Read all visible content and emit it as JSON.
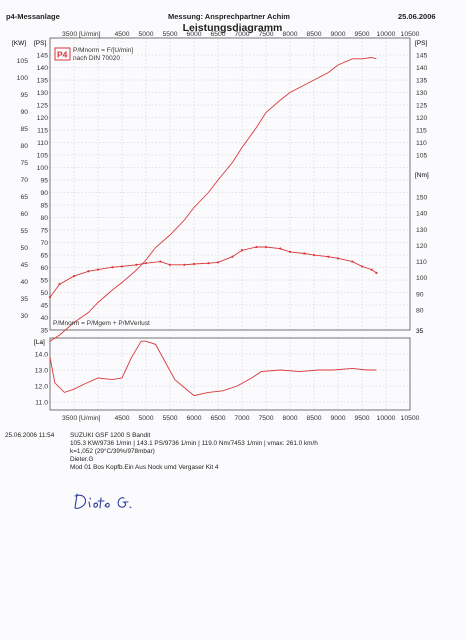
{
  "header": {
    "system": "p4-Messanlage",
    "measurement": "Messung: Ansprechpartner Achim",
    "date": "25.06.2006"
  },
  "chart_data": {
    "type": "line",
    "title": "Leistungsdiagramm",
    "legend": {
      "logo": "P4",
      "line1": "P/Mnorm = F/[U/min]",
      "line2": "nach DIN 70020"
    },
    "loss_label": "P/Mnorm = P/Mgem + P/MVerlust",
    "rpm_ticks_top": [
      "3500 [U/min]",
      "4500",
      "5000",
      "5500",
      "6000",
      "6500",
      "7000",
      "7500",
      "8000",
      "8500",
      "9000",
      "9500",
      "10000",
      "10500"
    ],
    "rpm_ticks_bottom": [
      "3500 [U/min]",
      "4500",
      "5000",
      "5500",
      "6000",
      "6500",
      "7000",
      "7500",
      "8000",
      "8500",
      "9000",
      "9500",
      "10000",
      "10500"
    ],
    "units": {
      "kw": "[KW]",
      "ps": "[PS]",
      "ps_right": "[PS]",
      "nm": "[Nm]",
      "la": "[La]"
    },
    "kw_ticks": [
      "105",
      "100",
      "95",
      "90",
      "85",
      "80",
      "75",
      "70",
      "65",
      "60",
      "55",
      "50",
      "45",
      "40",
      "35",
      "30"
    ],
    "ps_ticks": [
      "145",
      "140",
      "135",
      "130",
      "125",
      "120",
      "115",
      "110",
      "105",
      "100",
      "95",
      "90",
      "85",
      "80",
      "75",
      "70",
      "65",
      "60",
      "55",
      "50",
      "45",
      "40",
      "35"
    ],
    "ps_right_ticks": [
      "145",
      "140",
      "135",
      "130",
      "125",
      "120",
      "115",
      "110",
      "105"
    ],
    "nm_ticks": [
      "150",
      "140",
      "130",
      "120",
      "110",
      "100",
      "90",
      "80"
    ],
    "nm_right_extra": "35",
    "lambda_ticks": [
      "14.0",
      "13.0",
      "12.0",
      "11.0"
    ],
    "bottom_left_label": "40",
    "xlim": [
      3000,
      10500
    ],
    "series": [
      {
        "unit": "PS",
        "color": "#d8383c",
        "x": [
          3000,
          3200,
          3500,
          3800,
          4000,
          4300,
          4500,
          4800,
          5000,
          5200,
          5500,
          5800,
          6000,
          6300,
          6500,
          6800,
          7000,
          7300,
          7500,
          7800,
          8000,
          8300,
          8500,
          8800,
          9000,
          9300,
          9500,
          9700,
          9800
        ],
        "y": [
          30.5,
          33,
          38,
          42,
          46,
          51,
          54,
          59,
          63,
          68,
          73,
          79,
          84,
          90,
          95,
          102,
          108,
          116,
          122,
          127,
          130,
          133,
          135,
          138,
          141,
          143.5,
          143.5,
          144,
          143.5
        ]
      },
      {
        "unit": "Nm",
        "color": "#d8383c",
        "x": [
          3000,
          3200,
          3500,
          3800,
          4000,
          4300,
          4500,
          4800,
          5000,
          5300,
          5500,
          5800,
          6000,
          6300,
          6500,
          6800,
          7000,
          7300,
          7500,
          7800,
          8000,
          8300,
          8500,
          8800,
          9000,
          9300,
          9500,
          9700,
          9800
        ],
        "y": [
          88,
          96,
          101,
          104,
          105,
          106.5,
          107,
          108,
          109,
          110,
          108,
          108,
          108.5,
          109,
          109.5,
          113,
          117,
          119,
          119,
          118,
          116,
          115,
          114,
          113,
          112,
          110,
          107,
          105,
          103
        ]
      },
      {
        "unit": "Lambda",
        "color": "#d8383c",
        "x": [
          3000,
          3100,
          3300,
          3500,
          3700,
          4000,
          4300,
          4500,
          4700,
          4900,
          5000,
          5200,
          5400,
          5600,
          5800,
          6000,
          6300,
          6600,
          6900,
          7200,
          7400,
          7800,
          8200,
          8600,
          8900,
          9300,
          9600,
          9800
        ],
        "y": [
          13.8,
          12.2,
          11.6,
          11.8,
          12.1,
          12.5,
          12.4,
          12.5,
          13.8,
          14.8,
          14.8,
          14.6,
          13.5,
          12.4,
          11.9,
          11.4,
          11.6,
          11.7,
          12.0,
          12.5,
          12.9,
          13.0,
          12.9,
          13.0,
          13.0,
          13.1,
          13.0,
          13.0
        ]
      }
    ]
  },
  "info": {
    "run": "25.06.2006  11:54",
    "model": "SUZUKI GSF 1200 S Bandit",
    "results": "105.3 KW/9736 1/min  |  143.1 PS/9736 1/min  |  119.0 Nm/7453 1/min  |  vmax: 261.0 km/h",
    "correction": "k=1,052 (29°C/39%/978mbar)",
    "operator": "Dieter.G",
    "mods": "Mod 01 Bos Kopfb.Ein Aus Nock umd Vergaser Kit 4"
  },
  "signature": "Dieter G."
}
